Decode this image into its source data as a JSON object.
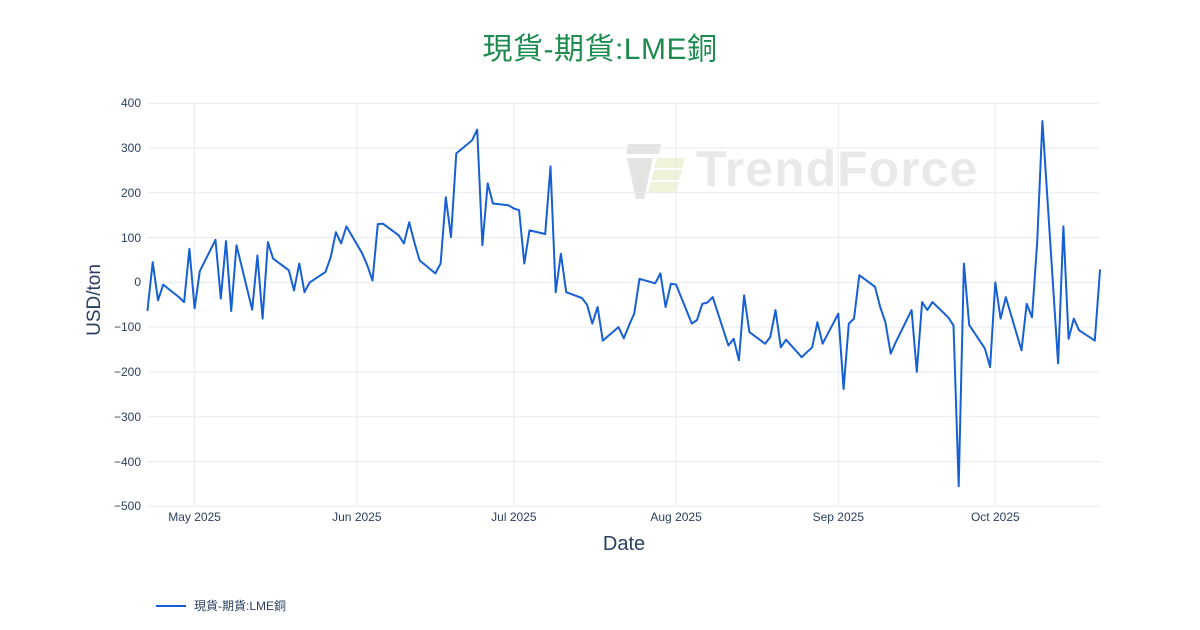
{
  "title": {
    "text": "現貨-期貨:LME銅"
  },
  "watermark": {
    "text": "TrendForce",
    "logo": "trendforce-logo"
  },
  "colors": {
    "line": "#1660d4",
    "title_green": "#1e8c4f",
    "axis_text": "#2a3f5f",
    "grid": "#e8ebef",
    "watermark_text": "#e9e9e7",
    "watermark_gray": "#e4e4e2",
    "watermark_green": "#eef3da",
    "background": "#ffffff"
  },
  "legend": {
    "position": "bottom-left",
    "items": [
      {
        "label": "現貨-期貨:LME銅",
        "color": "#1660d4"
      }
    ]
  },
  "chart_data": {
    "type": "line",
    "title": "現貨-期貨:LME銅",
    "xlabel": "Date",
    "ylabel": "USD/ton",
    "grid": true,
    "legend_position": "bottom-left",
    "ylim": [
      -500,
      400
    ],
    "x_range": [
      "2025-04-22",
      "2025-10-21"
    ],
    "yticks": [
      {
        "value": 400,
        "label": "400"
      },
      {
        "value": 300,
        "label": "300"
      },
      {
        "value": 200,
        "label": "200"
      },
      {
        "value": 100,
        "label": "100"
      },
      {
        "value": 0,
        "label": "0"
      },
      {
        "value": -100,
        "label": "−100"
      },
      {
        "value": -200,
        "label": "−200"
      },
      {
        "value": -300,
        "label": "−300"
      },
      {
        "value": -400,
        "label": "−400"
      },
      {
        "value": -500,
        "label": "−500"
      }
    ],
    "xticks": [
      {
        "date": "2025-05-01",
        "label": "May 2025"
      },
      {
        "date": "2025-06-01",
        "label": "Jun 2025"
      },
      {
        "date": "2025-07-01",
        "label": "Jul 2025"
      },
      {
        "date": "2025-08-01",
        "label": "Aug 2025"
      },
      {
        "date": "2025-09-01",
        "label": "Sep 2025"
      },
      {
        "date": "2025-10-01",
        "label": "Oct 2025"
      }
    ],
    "series": [
      {
        "name": "現貨-期貨:LME銅",
        "color": "#1660d4",
        "dates": [
          "2025-04-22",
          "2025-04-23",
          "2025-04-24",
          "2025-04-25",
          "2025-04-28",
          "2025-04-29",
          "2025-04-30",
          "2025-05-01",
          "2025-05-02",
          "2025-05-05",
          "2025-05-06",
          "2025-05-07",
          "2025-05-08",
          "2025-05-09",
          "2025-05-12",
          "2025-05-13",
          "2025-05-14",
          "2025-05-15",
          "2025-05-16",
          "2025-05-19",
          "2025-05-20",
          "2025-05-21",
          "2025-05-22",
          "2025-05-23",
          "2025-05-26",
          "2025-05-27",
          "2025-05-28",
          "2025-05-29",
          "2025-05-30",
          "2025-06-02",
          "2025-06-03",
          "2025-06-04",
          "2025-06-05",
          "2025-06-06",
          "2025-06-09",
          "2025-06-10",
          "2025-06-11",
          "2025-06-12",
          "2025-06-13",
          "2025-06-16",
          "2025-06-17",
          "2025-06-18",
          "2025-06-19",
          "2025-06-20",
          "2025-06-23",
          "2025-06-24",
          "2025-06-25",
          "2025-06-26",
          "2025-06-27",
          "2025-06-30",
          "2025-07-01",
          "2025-07-02",
          "2025-07-03",
          "2025-07-04",
          "2025-07-07",
          "2025-07-08",
          "2025-07-09",
          "2025-07-10",
          "2025-07-11",
          "2025-07-14",
          "2025-07-15",
          "2025-07-16",
          "2025-07-17",
          "2025-07-18",
          "2025-07-21",
          "2025-07-22",
          "2025-07-23",
          "2025-07-24",
          "2025-07-25",
          "2025-07-28",
          "2025-07-29",
          "2025-07-30",
          "2025-07-31",
          "2025-08-01",
          "2025-08-04",
          "2025-08-05",
          "2025-08-06",
          "2025-08-07",
          "2025-08-08",
          "2025-08-11",
          "2025-08-12",
          "2025-08-13",
          "2025-08-14",
          "2025-08-15",
          "2025-08-18",
          "2025-08-19",
          "2025-08-20",
          "2025-08-21",
          "2025-08-22",
          "2025-08-25",
          "2025-08-26",
          "2025-08-27",
          "2025-08-28",
          "2025-08-29",
          "2025-09-01",
          "2025-09-02",
          "2025-09-03",
          "2025-09-04",
          "2025-09-05",
          "2025-09-08",
          "2025-09-09",
          "2025-09-10",
          "2025-09-11",
          "2025-09-12",
          "2025-09-15",
          "2025-09-16",
          "2025-09-17",
          "2025-09-18",
          "2025-09-19",
          "2025-09-22",
          "2025-09-23",
          "2025-09-24",
          "2025-09-25",
          "2025-09-26",
          "2025-09-29",
          "2025-09-30",
          "2025-10-01",
          "2025-10-02",
          "2025-10-03",
          "2025-10-06",
          "2025-10-07",
          "2025-10-08",
          "2025-10-09",
          "2025-10-10",
          "2025-10-13",
          "2025-10-14",
          "2025-10-15",
          "2025-10-16",
          "2025-10-17",
          "2025-10-20",
          "2025-10-21"
        ],
        "values": [
          -62,
          45,
          -40,
          -5,
          -33,
          -44,
          75,
          -58,
          25,
          95,
          -36,
          92,
          -64,
          83,
          -61,
          60,
          -81,
          90,
          53,
          27,
          -18,
          42,
          -22,
          0,
          23,
          56,
          112,
          87,
          125,
          65,
          38,
          4,
          130,
          131,
          105,
          87,
          134,
          89,
          49,
          20,
          42,
          190,
          101,
          288,
          317,
          341,
          83,
          221,
          176,
          172,
          165,
          161,
          42,
          116,
          108,
          259,
          -22,
          64,
          -22,
          -35,
          -50,
          -92,
          -55,
          -130,
          -100,
          -125,
          -96,
          -70,
          8,
          -2,
          20,
          -55,
          -3,
          -5,
          -92,
          -84,
          -48,
          -45,
          -33,
          -141,
          -126,
          -174,
          -29,
          -111,
          -137,
          -122,
          -62,
          -145,
          -128,
          -167,
          -156,
          -145,
          -89,
          -137,
          -70,
          -238,
          -92,
          -81,
          16,
          -10,
          -55,
          -89,
          -159,
          -133,
          -62,
          -200,
          -44,
          -62,
          -44,
          -78,
          -96,
          -455,
          42,
          -95,
          -148,
          -189,
          0,
          -81,
          -33,
          -152,
          -48,
          -78,
          90,
          360,
          -181,
          125,
          -126,
          -81,
          -107,
          -130,
          27
        ]
      }
    ]
  }
}
